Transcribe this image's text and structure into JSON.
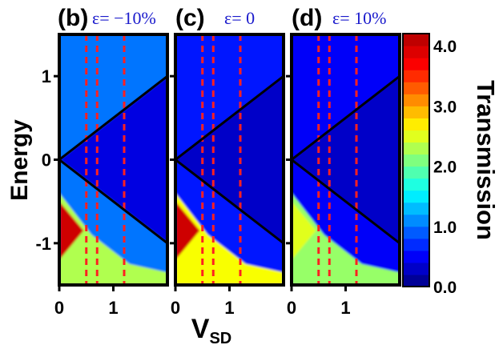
{
  "figure": {
    "ylabel": "Energy",
    "xlabel_main": "V",
    "xlabel_sub": "SD",
    "colorbar_label": "Transmission"
  },
  "colors": {
    "panel_border": "#000000",
    "dashed_lines": "#ff2020",
    "cone_lines": "#000000",
    "strain_label": "#1a1acc"
  },
  "chart_data": [
    {
      "type": "heatmap",
      "panel_letter": "(b)",
      "strain_label": "ε= −10%",
      "xlim": [
        0,
        2
      ],
      "ylim": [
        -1.5,
        1.5
      ],
      "xticks": [
        0,
        1
      ],
      "yticks": [
        -1,
        0,
        1
      ],
      "dashed_vsd": [
        0.5,
        0.7,
        1.2
      ],
      "cone_lines": [
        {
          "from": [
            0,
            0
          ],
          "to": [
            2,
            1
          ]
        },
        {
          "from": [
            0,
            0
          ],
          "to": [
            2,
            -1
          ]
        }
      ],
      "regions": [
        {
          "name": "background",
          "value": 1.0
        },
        {
          "name": "central-gap",
          "value": 0.4
        },
        {
          "name": "left-lower-lobe",
          "value": 2.3
        },
        {
          "name": "peak-lower-left",
          "value": 4.0
        }
      ]
    },
    {
      "type": "heatmap",
      "panel_letter": "(c)",
      "strain_label": "ε= 0",
      "xlim": [
        0,
        2
      ],
      "ylim": [
        -1.5,
        1.5
      ],
      "xticks": [
        0,
        1
      ],
      "yticks": [
        -1,
        0,
        1
      ],
      "dashed_vsd": [
        0.5,
        0.7,
        1.2
      ],
      "cone_lines": [
        {
          "from": [
            0,
            0
          ],
          "to": [
            2,
            1
          ]
        },
        {
          "from": [
            0,
            0
          ],
          "to": [
            2,
            -1
          ]
        }
      ],
      "regions": [
        {
          "name": "background",
          "value": 0.6
        },
        {
          "name": "central-gap",
          "value": 0.3
        },
        {
          "name": "left-lower-lobe",
          "value": 2.6
        },
        {
          "name": "peak-lower-left",
          "value": 4.0
        }
      ]
    },
    {
      "type": "heatmap",
      "panel_letter": "(d)",
      "strain_label": "ε= 10%",
      "xlim": [
        0,
        2
      ],
      "ylim": [
        -1.5,
        1.5
      ],
      "xticks": [
        0,
        1
      ],
      "yticks": [
        -1,
        0,
        1
      ],
      "dashed_vsd": [
        0.5,
        0.7,
        1.2
      ],
      "cone_lines": [
        {
          "from": [
            0,
            0
          ],
          "to": [
            2,
            1
          ]
        },
        {
          "from": [
            0,
            0
          ],
          "to": [
            2,
            -1
          ]
        }
      ],
      "regions": [
        {
          "name": "background",
          "value": 0.5
        },
        {
          "name": "central-gap",
          "value": 0.3
        },
        {
          "name": "left-lower-lobe",
          "value": 2.2
        },
        {
          "name": "peak-lower-left",
          "value": 2.5
        }
      ]
    }
  ],
  "colorbar": {
    "vmin": 0,
    "vmax": 4.2,
    "tick_values": [
      0,
      1,
      2,
      3,
      4
    ],
    "tick_labels": [
      "0.0",
      "1.0",
      "2.0",
      "3.0",
      "4.0"
    ],
    "stops": [
      "#00007f",
      "#0000ff",
      "#0080ff",
      "#00ffff",
      "#7fff7f",
      "#ffff00",
      "#ff8000",
      "#ff0000",
      "#b00000"
    ]
  }
}
